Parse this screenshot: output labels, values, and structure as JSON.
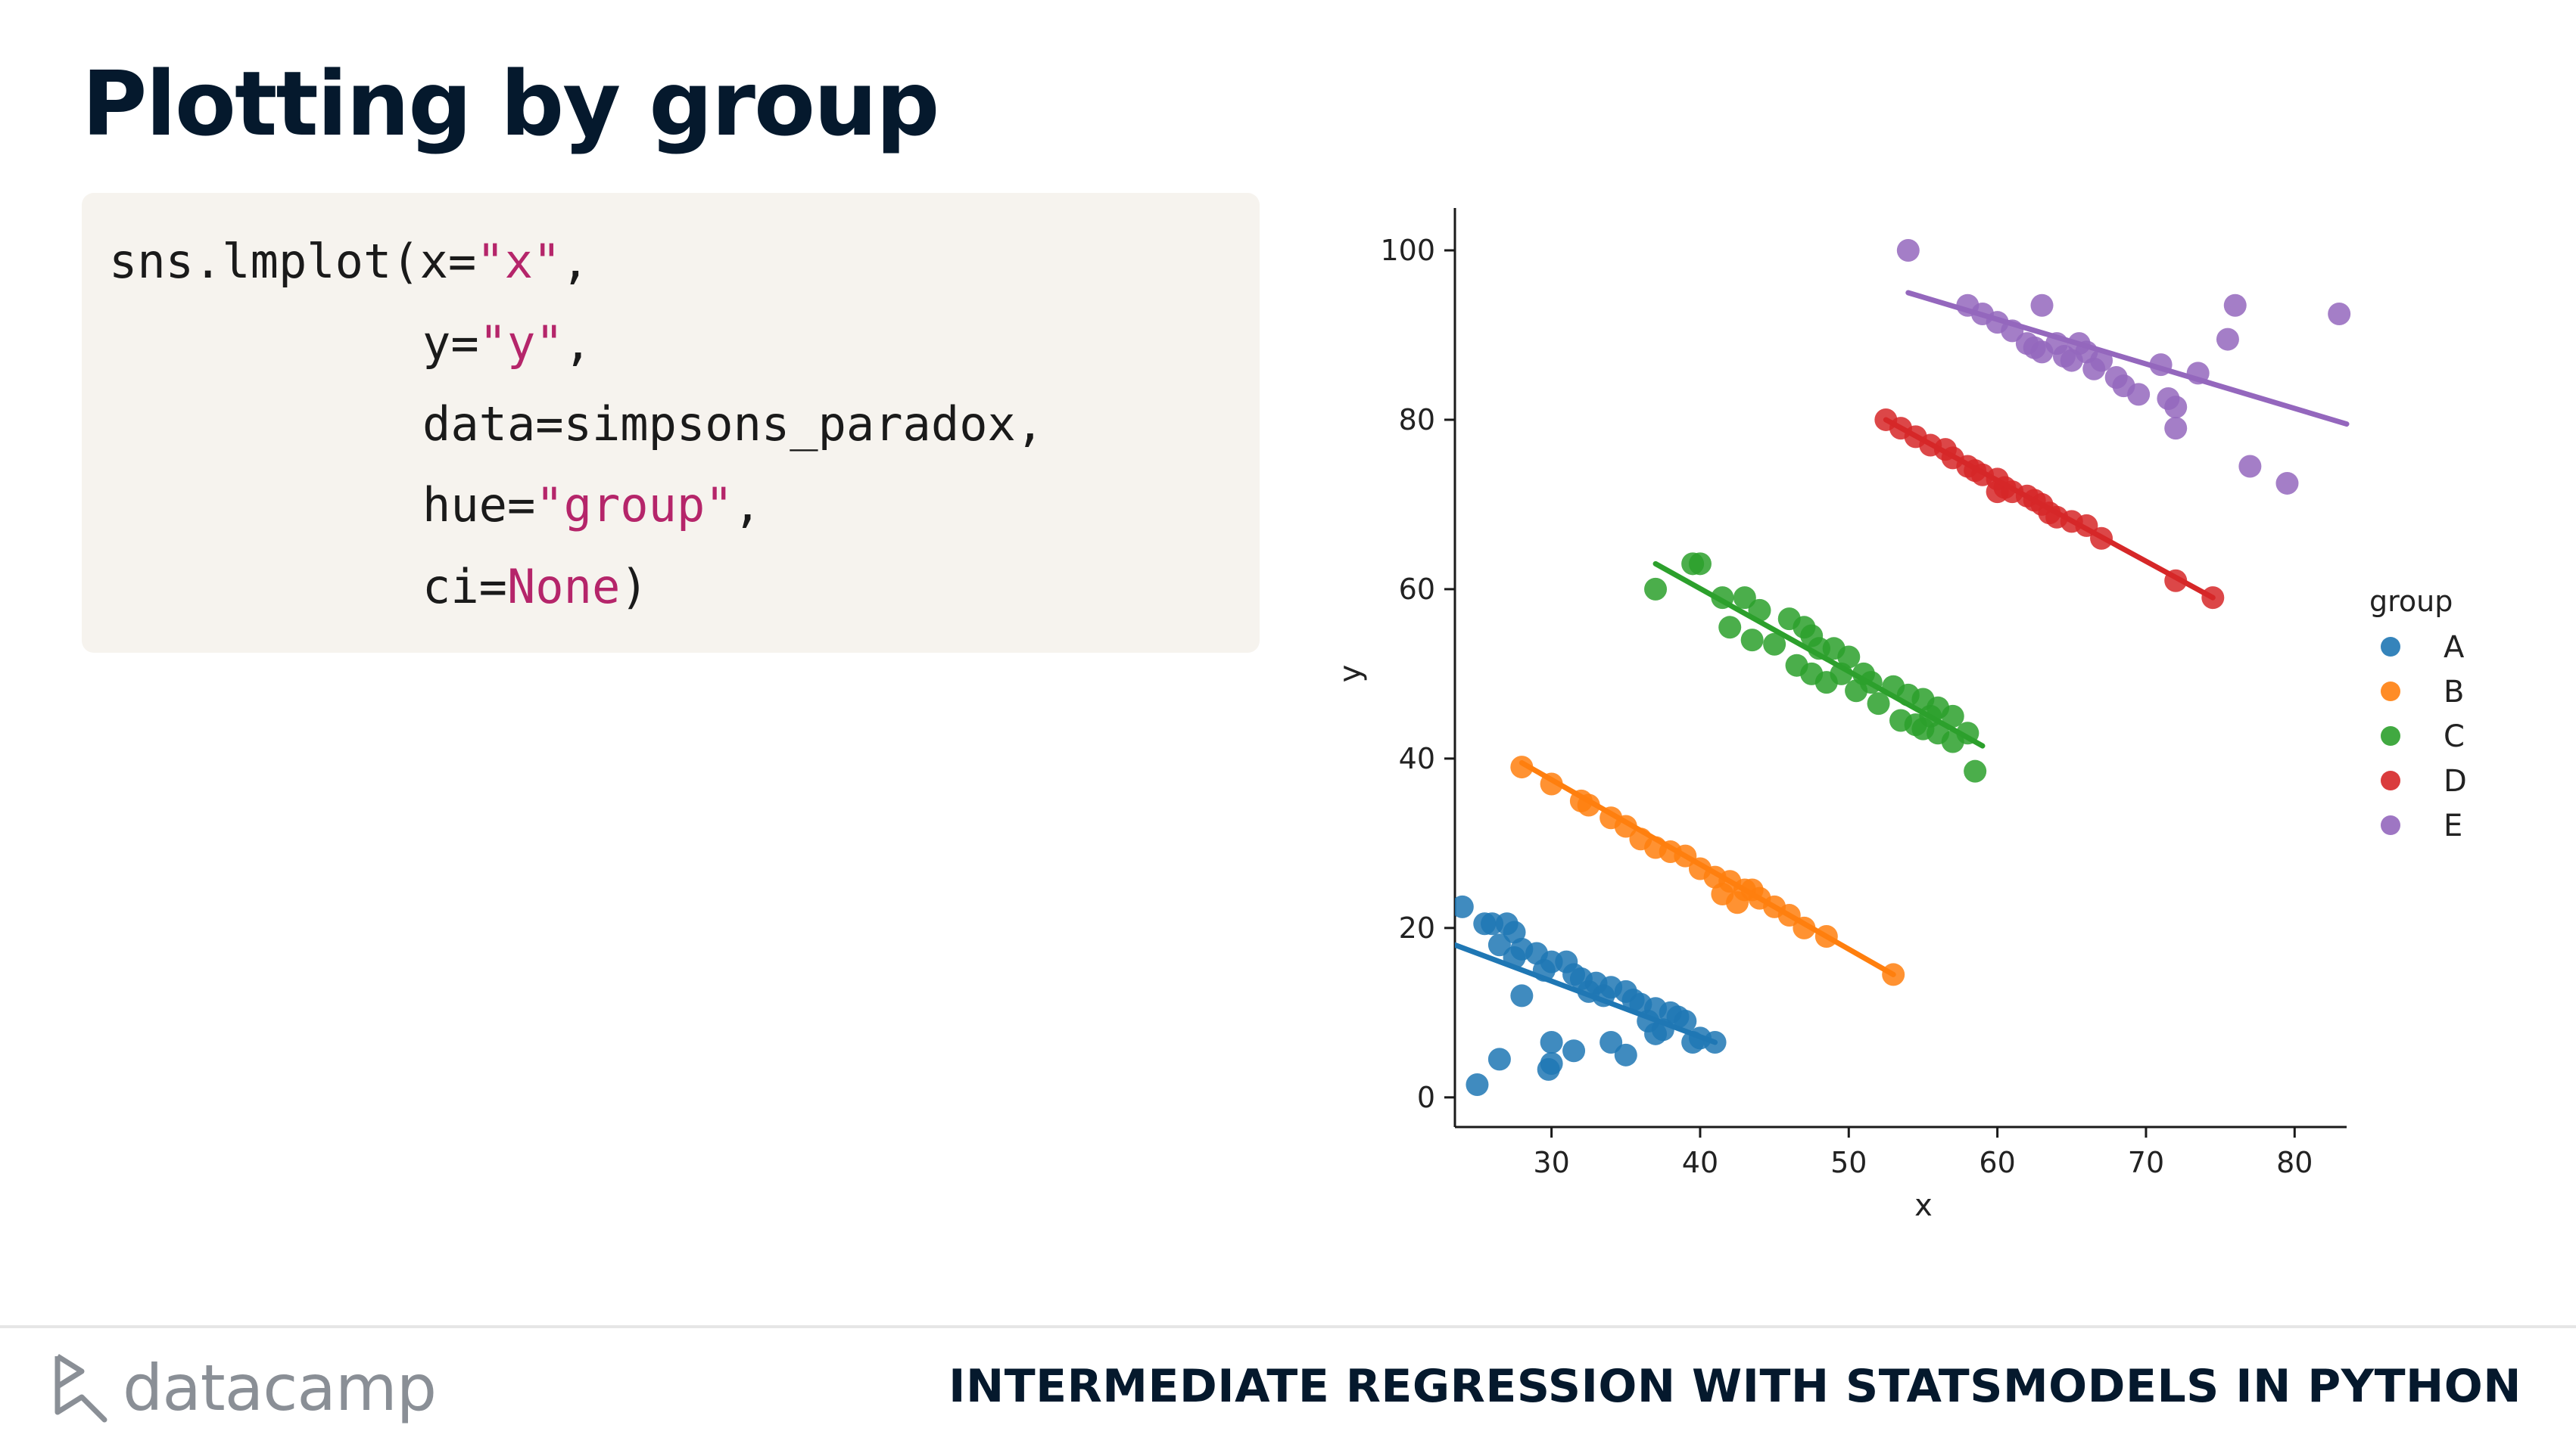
{
  "slide": {
    "title": "Plotting by group",
    "course": "INTERMEDIATE REGRESSION WITH STATSMODELS IN PYTHON",
    "brand": "datacamp"
  },
  "code": {
    "line1": {
      "a": "sns.lmplot(x=",
      "s": "\"x\"",
      "b": ","
    },
    "line2": {
      "a": "y=",
      "s": "\"y\"",
      "b": ","
    },
    "line3": {
      "a": "data=simpsons_paradox,"
    },
    "line4": {
      "a": "hue=",
      "s": "\"group\"",
      "b": ","
    },
    "line5": {
      "a": "ci=",
      "k": "None",
      "b": ")"
    }
  },
  "chart_data": {
    "type": "scatter",
    "xlabel": "x",
    "ylabel": "y",
    "xlim": [
      23.5,
      83.5
    ],
    "ylim": [
      -3.5,
      105
    ],
    "xticks": [
      30,
      40,
      50,
      60,
      70,
      80
    ],
    "yticks": [
      0,
      20,
      40,
      60,
      80,
      100
    ],
    "legend_title": "group",
    "legend_position": "right",
    "series": [
      {
        "name": "A",
        "color": "#1f77b4",
        "fit": [
          [
            23.5,
            18
          ],
          [
            41,
            6.5
          ]
        ],
        "points": [
          [
            24,
            22.5
          ],
          [
            25.5,
            20.5
          ],
          [
            26,
            20.5
          ],
          [
            27,
            20.5
          ],
          [
            26.5,
            18
          ],
          [
            27.5,
            19.5
          ],
          [
            28,
            17.5
          ],
          [
            27.5,
            16.5
          ],
          [
            29,
            17
          ],
          [
            30,
            16
          ],
          [
            31,
            16
          ],
          [
            29.5,
            15
          ],
          [
            31.5,
            14.5
          ],
          [
            32,
            14
          ],
          [
            33,
            13.5
          ],
          [
            32.5,
            12.5
          ],
          [
            34,
            13
          ],
          [
            35,
            12.5
          ],
          [
            36,
            11
          ],
          [
            37,
            10.5
          ],
          [
            38,
            10
          ],
          [
            39,
            9
          ],
          [
            40,
            7
          ],
          [
            41,
            6.5
          ],
          [
            33.5,
            12
          ],
          [
            35.5,
            11.5
          ],
          [
            36.5,
            9
          ],
          [
            37.5,
            8
          ],
          [
            38.5,
            9.5
          ],
          [
            39.5,
            6.5
          ],
          [
            28,
            12
          ],
          [
            30,
            6.5
          ],
          [
            31.5,
            5.5
          ],
          [
            34,
            6.5
          ],
          [
            35,
            5
          ],
          [
            26.5,
            4.5
          ],
          [
            30,
            4
          ],
          [
            29.8,
            3.3
          ],
          [
            25,
            1.5
          ],
          [
            37,
            7.5
          ]
        ]
      },
      {
        "name": "B",
        "color": "#ff7f0e",
        "fit": [
          [
            28,
            39.5
          ],
          [
            53,
            14.5
          ]
        ],
        "points": [
          [
            28,
            39
          ],
          [
            30,
            37
          ],
          [
            32,
            35
          ],
          [
            32.5,
            34.5
          ],
          [
            34,
            33
          ],
          [
            35,
            32
          ],
          [
            36,
            30.5
          ],
          [
            37,
            29.5
          ],
          [
            38,
            29
          ],
          [
            39,
            28.5
          ],
          [
            40,
            27
          ],
          [
            41,
            26
          ],
          [
            42,
            25.5
          ],
          [
            43,
            24.5
          ],
          [
            44,
            23.5
          ],
          [
            45,
            22.5
          ],
          [
            46,
            21.5
          ],
          [
            47,
            20
          ],
          [
            48.5,
            19
          ],
          [
            53,
            14.5
          ],
          [
            41.5,
            24
          ],
          [
            42.5,
            23
          ],
          [
            43.5,
            24.5
          ]
        ]
      },
      {
        "name": "C",
        "color": "#2ca02c",
        "fit": [
          [
            37,
            63
          ],
          [
            59,
            41.5
          ]
        ],
        "points": [
          [
            37,
            60
          ],
          [
            39.5,
            63
          ],
          [
            40,
            63
          ],
          [
            41.5,
            59
          ],
          [
            43,
            59
          ],
          [
            42,
            55.5
          ],
          [
            43.5,
            54
          ],
          [
            44,
            57.5
          ],
          [
            45,
            53.5
          ],
          [
            46,
            56.5
          ],
          [
            47,
            55.5
          ],
          [
            47.5,
            54.5
          ],
          [
            48,
            53
          ],
          [
            49,
            53
          ],
          [
            46.5,
            51
          ],
          [
            47.5,
            50
          ],
          [
            48.5,
            49
          ],
          [
            49.5,
            50
          ],
          [
            50,
            52
          ],
          [
            51,
            50
          ],
          [
            51.5,
            49
          ],
          [
            53,
            48.5
          ],
          [
            52,
            46.5
          ],
          [
            54,
            47.5
          ],
          [
            55,
            47
          ],
          [
            55.5,
            45
          ],
          [
            56,
            46
          ],
          [
            57,
            45
          ],
          [
            53.5,
            44.5
          ],
          [
            54.5,
            44
          ],
          [
            56,
            43
          ],
          [
            57,
            42
          ],
          [
            55,
            43.5
          ],
          [
            58,
            43
          ],
          [
            58.5,
            38.5
          ],
          [
            50.5,
            48
          ]
        ]
      },
      {
        "name": "D",
        "color": "#d62728",
        "fit": [
          [
            52.5,
            80
          ],
          [
            74.5,
            59
          ]
        ],
        "points": [
          [
            52.5,
            80
          ],
          [
            53.5,
            79
          ],
          [
            54.5,
            78
          ],
          [
            55.5,
            77
          ],
          [
            56.5,
            76.5
          ],
          [
            57,
            75.5
          ],
          [
            58,
            74.5
          ],
          [
            58.5,
            74
          ],
          [
            59,
            73.5
          ],
          [
            60,
            73
          ],
          [
            60.5,
            72
          ],
          [
            61,
            71.5
          ],
          [
            62,
            71
          ],
          [
            62.5,
            70.5
          ],
          [
            63,
            70
          ],
          [
            63.5,
            69
          ],
          [
            64,
            68.5
          ],
          [
            65,
            68
          ],
          [
            66,
            67.5
          ],
          [
            67,
            66
          ],
          [
            60,
            71.5
          ],
          [
            72,
            61
          ],
          [
            74.5,
            59
          ]
        ]
      },
      {
        "name": "E",
        "color": "#9467bd",
        "fit": [
          [
            54,
            95
          ],
          [
            83.5,
            79.5
          ]
        ],
        "points": [
          [
            54,
            100
          ],
          [
            58,
            93.5
          ],
          [
            59,
            92.5
          ],
          [
            60,
            91.5
          ],
          [
            61,
            90.5
          ],
          [
            62,
            89
          ],
          [
            62.5,
            88.5
          ],
          [
            63,
            88
          ],
          [
            63,
            93.5
          ],
          [
            64,
            89
          ],
          [
            64.5,
            87.5
          ],
          [
            65,
            87
          ],
          [
            65.5,
            89
          ],
          [
            66,
            88
          ],
          [
            66.5,
            86
          ],
          [
            67,
            87
          ],
          [
            68,
            85
          ],
          [
            68.5,
            84
          ],
          [
            69.5,
            83
          ],
          [
            71,
            86.5
          ],
          [
            71.5,
            82.5
          ],
          [
            72,
            81.5
          ],
          [
            72,
            79
          ],
          [
            73.5,
            85.5
          ],
          [
            75.5,
            89.5
          ],
          [
            76,
            93.5
          ],
          [
            77,
            74.5
          ],
          [
            79.5,
            72.5
          ],
          [
            83,
            92.5
          ]
        ]
      }
    ]
  }
}
